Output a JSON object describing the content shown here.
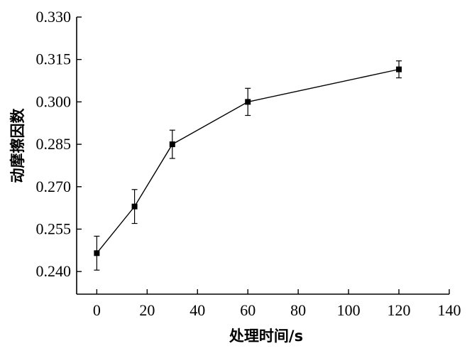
{
  "chart_data": {
    "type": "line",
    "xlabel": "处理时间/s",
    "ylabel": "动摩擦因数",
    "xlim": [
      -8,
      140
    ],
    "ylim": [
      0.232,
      0.33
    ],
    "xticks": [
      0,
      20,
      40,
      60,
      80,
      100,
      120,
      140
    ],
    "xtick_labels": [
      "0",
      "20",
      "40",
      "60",
      "80",
      "100",
      "120",
      "140"
    ],
    "yticks": [
      0.24,
      0.255,
      0.27,
      0.285,
      0.3,
      0.315,
      0.33
    ],
    "ytick_labels": [
      "0.240",
      "0.255",
      "0.270",
      "0.285",
      "0.300",
      "0.315",
      "0.330"
    ],
    "grid": false,
    "series": [
      {
        "x": [
          0,
          15,
          30,
          60,
          120
        ],
        "values": [
          0.2465,
          0.263,
          0.285,
          0.3,
          0.3115
        ],
        "error": [
          0.006,
          0.006,
          0.005,
          0.0048,
          0.003
        ],
        "marker": "square",
        "color": "#000000"
      }
    ]
  }
}
